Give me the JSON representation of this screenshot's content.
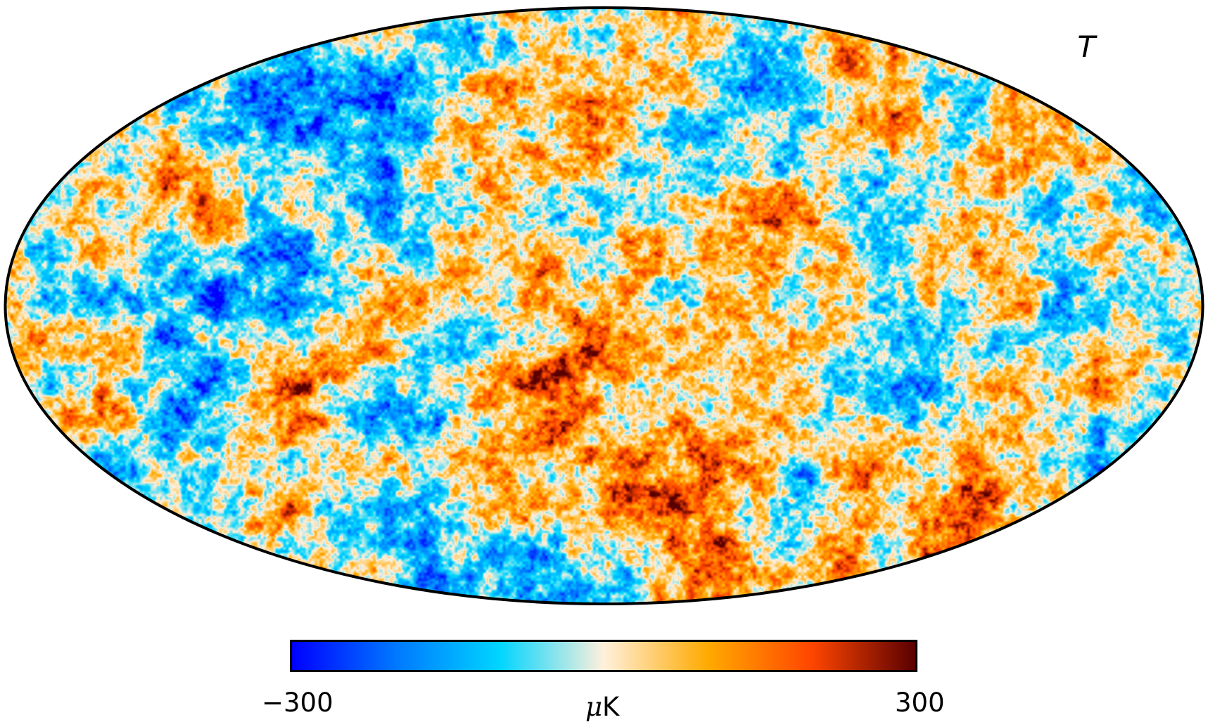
{
  "map": {
    "projection": "mollweide",
    "field_label": "T",
    "colormap": [
      "#0000ff",
      "#0078ff",
      "#00d5ff",
      "#fff0dc",
      "#ffaa00",
      "#ff4600",
      "#5a0000"
    ]
  },
  "colorbar": {
    "min_label": "−300",
    "max_label": "300",
    "unit_prefix": "μ",
    "unit_suffix": "K",
    "min": -300,
    "max": 300
  }
}
